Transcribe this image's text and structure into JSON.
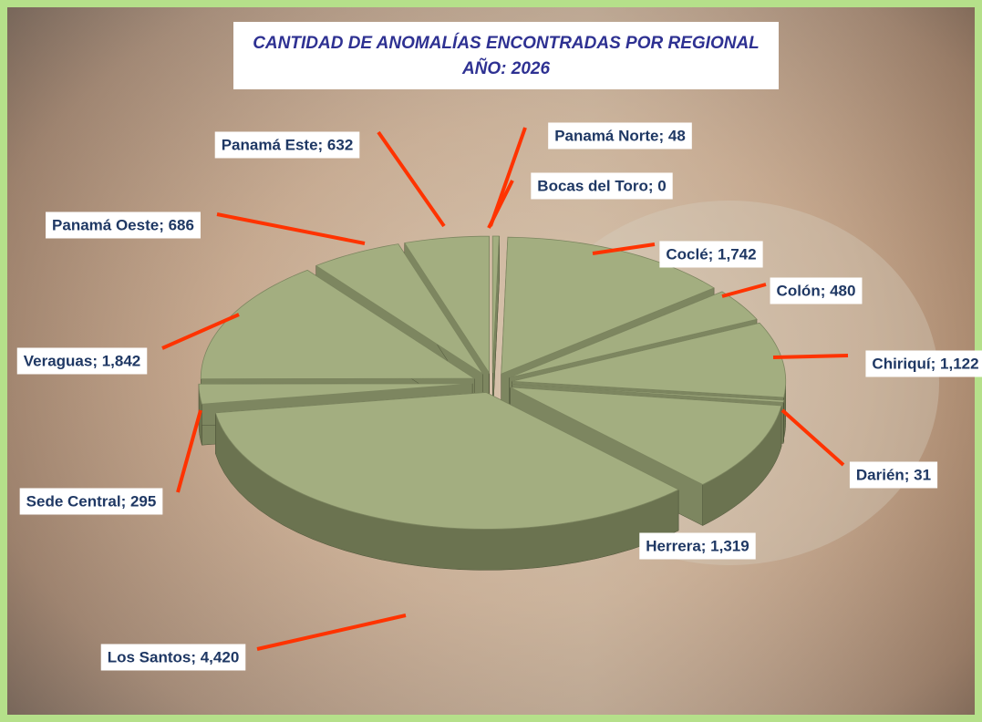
{
  "chart_data": {
    "type": "pie",
    "title": "CANTIDAD DE ANOMALÍAS ENCONTRADAS POR REGIONAL",
    "subtitle": "AÑO: 2026",
    "values": [
      48,
      0,
      1742,
      480,
      1122,
      31,
      1319,
      4420,
      295,
      1842,
      686,
      632
    ],
    "value_labels": [
      "Panamá Norte; 48",
      "Bocas del Toro; 0",
      "Coclé; 1,742",
      "Colón; 480",
      "Chiriquí; 1,122",
      "Darién; 31",
      "Herrera; 1,319",
      "Los Santos; 4,420",
      "Sede Central; 295",
      "Veraguas; 1,842",
      "Panamá Oeste; 686",
      "Panamá Este; 632"
    ],
    "color": "#a3ae80"
  }
}
